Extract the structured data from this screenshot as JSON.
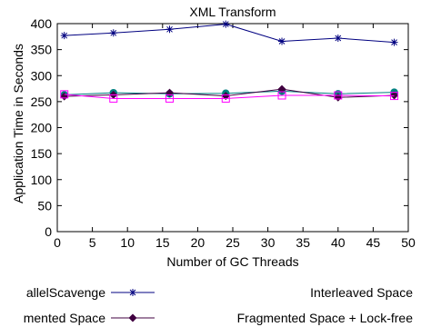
{
  "chart_data": {
    "type": "line",
    "title": "XML Transform",
    "xlabel": "Number of GC Threads",
    "ylabel": "Application Time in Seconds",
    "xlim": [
      0,
      50
    ],
    "ylim": [
      0,
      400
    ],
    "xticks": [
      "0",
      "5",
      "10",
      "15",
      "20",
      "25",
      "30",
      "35",
      "40",
      "45",
      "50"
    ],
    "yticks": [
      "0",
      "50",
      "100",
      "150",
      "200",
      "250",
      "300",
      "350",
      "400"
    ],
    "x": [
      1,
      8,
      16,
      24,
      32,
      40,
      48
    ],
    "grid": false,
    "legend_position": "bottom",
    "series": [
      {
        "name": "ParallelScavenge",
        "legend_label": "allelScavenge",
        "color": "#000080",
        "marker": "asterisk",
        "values": [
          377,
          382,
          389,
          399,
          366,
          372,
          364
        ]
      },
      {
        "name": "Interleaved Space",
        "legend_label": "Interleaved Space",
        "color": "#008080",
        "marker": "circle",
        "values": [
          263,
          267,
          265,
          266,
          270,
          265,
          268
        ]
      },
      {
        "name": "Fragmented Space",
        "legend_label": "mented Space",
        "color": "#400040",
        "marker": "diamond",
        "values": [
          260,
          263,
          267,
          261,
          274,
          258,
          262
        ]
      },
      {
        "name": "Fragmented Space + Lock-free",
        "legend_label": "Fragmented Space + Lock-free",
        "color": "#ff00ff",
        "marker": "square",
        "values": [
          264,
          256,
          256,
          256,
          262,
          262,
          261
        ]
      }
    ]
  }
}
